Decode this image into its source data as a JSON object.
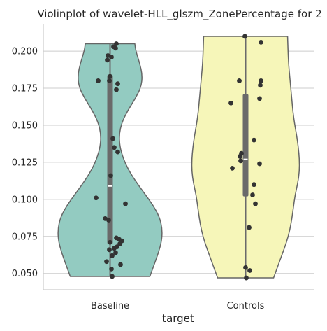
{
  "chart_data": {
    "type": "violin",
    "title": "Violinplot of wavelet-HLL_glszm_ZonePercentage for 2",
    "xlabel": "target",
    "ylabel": "",
    "categories": [
      "Baseline",
      "Controls"
    ],
    "ylim": [
      0.039,
      0.218
    ],
    "yticks": [
      "0.050",
      "0.075",
      "0.100",
      "0.125",
      "0.150",
      "0.175",
      "0.200"
    ],
    "grid": "horizontal",
    "colors": {
      "Baseline": "#93cbc1",
      "Controls": "#f6f6b9",
      "outline": "#666666",
      "points": "#333333"
    },
    "series": [
      {
        "name": "Baseline",
        "min": 0.048,
        "max": 0.205,
        "q1": 0.07,
        "median": 0.109,
        "q3": 0.184,
        "density": [
          [
            0.048,
            0.74
          ],
          [
            0.056,
            0.82
          ],
          [
            0.064,
            0.9
          ],
          [
            0.072,
            0.96
          ],
          [
            0.08,
            0.97
          ],
          [
            0.088,
            0.92
          ],
          [
            0.096,
            0.8
          ],
          [
            0.104,
            0.64
          ],
          [
            0.112,
            0.48
          ],
          [
            0.12,
            0.34
          ],
          [
            0.128,
            0.24
          ],
          [
            0.136,
            0.18
          ],
          [
            0.144,
            0.17
          ],
          [
            0.152,
            0.22
          ],
          [
            0.16,
            0.33
          ],
          [
            0.168,
            0.47
          ],
          [
            0.176,
            0.58
          ],
          [
            0.184,
            0.6
          ],
          [
            0.192,
            0.55
          ],
          [
            0.2,
            0.48
          ],
          [
            0.205,
            0.46
          ]
        ],
        "points": [
          [
            -0.03,
            0.197
          ],
          [
            0.02,
            0.196
          ],
          [
            -0.04,
            0.194
          ],
          [
            0.05,
            0.203
          ],
          [
            0.09,
            0.205
          ],
          [
            0.08,
            0.202
          ],
          [
            0.0,
            0.183
          ],
          [
            -0.17,
            0.18
          ],
          [
            -0.01,
            0.18
          ],
          [
            0.11,
            0.178
          ],
          [
            0.09,
            0.174
          ],
          [
            0.04,
            0.141
          ],
          [
            0.06,
            0.135
          ],
          [
            0.11,
            0.132
          ],
          [
            0.01,
            0.116
          ],
          [
            0.22,
            0.097
          ],
          [
            -0.2,
            0.101
          ],
          [
            -0.07,
            0.087
          ],
          [
            -0.02,
            0.086
          ],
          [
            0.09,
            0.074
          ],
          [
            0.13,
            0.073
          ],
          [
            0.17,
            0.072
          ],
          [
            0.14,
            0.07
          ],
          [
            0.0,
            0.071
          ],
          [
            0.1,
            0.068
          ],
          [
            0.06,
            0.067
          ],
          [
            -0.01,
            0.066
          ],
          [
            0.03,
            0.062
          ],
          [
            0.08,
            0.064
          ],
          [
            -0.05,
            0.058
          ],
          [
            0.15,
            0.056
          ],
          [
            0.02,
            0.053
          ],
          [
            0.03,
            0.048
          ]
        ]
      },
      {
        "name": "Controls",
        "min": 0.047,
        "max": 0.21,
        "q1": 0.102,
        "median": 0.127,
        "q3": 0.171,
        "density": [
          [
            0.047,
            0.52
          ],
          [
            0.055,
            0.6
          ],
          [
            0.063,
            0.68
          ],
          [
            0.071,
            0.76
          ],
          [
            0.079,
            0.82
          ],
          [
            0.087,
            0.86
          ],
          [
            0.095,
            0.89
          ],
          [
            0.103,
            0.92
          ],
          [
            0.111,
            0.97
          ],
          [
            0.119,
            1.0
          ],
          [
            0.127,
            1.0
          ],
          [
            0.135,
            0.98
          ],
          [
            0.143,
            0.95
          ],
          [
            0.151,
            0.91
          ],
          [
            0.159,
            0.88
          ],
          [
            0.167,
            0.86
          ],
          [
            0.175,
            0.84
          ],
          [
            0.183,
            0.82
          ],
          [
            0.191,
            0.8
          ],
          [
            0.199,
            0.79
          ],
          [
            0.21,
            0.78
          ]
        ],
        "points": [
          [
            -0.01,
            0.21
          ],
          [
            0.22,
            0.206
          ],
          [
            -0.09,
            0.18
          ],
          [
            0.22,
            0.18
          ],
          [
            0.21,
            0.177
          ],
          [
            0.2,
            0.168
          ],
          [
            -0.21,
            0.165
          ],
          [
            0.12,
            0.14
          ],
          [
            -0.06,
            0.131
          ],
          [
            -0.08,
            0.129
          ],
          [
            -0.07,
            0.126
          ],
          [
            0.2,
            0.124
          ],
          [
            -0.19,
            0.121
          ],
          [
            0.12,
            0.11
          ],
          [
            0.1,
            0.103
          ],
          [
            0.14,
            0.097
          ],
          [
            0.05,
            0.081
          ],
          [
            0.0,
            0.054
          ],
          [
            0.06,
            0.052
          ],
          [
            0.01,
            0.047
          ]
        ]
      }
    ]
  }
}
